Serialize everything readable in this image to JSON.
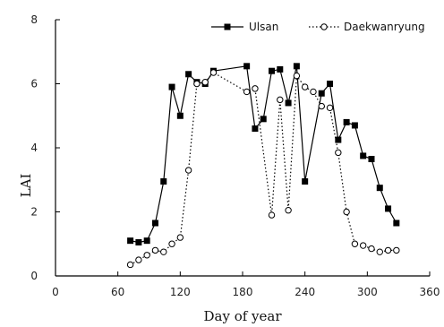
{
  "chart_data": {
    "type": "line",
    "title": "",
    "xlabel": "Day of year",
    "ylabel": "LAI",
    "xlim": [
      0,
      360
    ],
    "ylim": [
      0,
      8
    ],
    "xticks": [
      0,
      60,
      120,
      180,
      240,
      300,
      360
    ],
    "yticks": [
      0,
      2,
      4,
      6,
      8
    ],
    "grid": false,
    "legend_position": "top-right",
    "series": [
      {
        "name": "Ulsan",
        "style": "solid",
        "marker": "filled-square",
        "color": "#000000",
        "x": [
          72,
          80,
          88,
          96,
          104,
          112,
          120,
          128,
          136,
          144,
          152,
          184,
          192,
          200,
          208,
          216,
          224,
          232,
          240,
          256,
          264,
          272,
          280,
          288,
          296,
          304,
          312,
          320,
          328
        ],
        "y": [
          1.1,
          1.05,
          1.1,
          1.65,
          2.95,
          5.9,
          5.0,
          6.3,
          6.05,
          6.0,
          6.4,
          6.55,
          4.6,
          4.9,
          6.4,
          6.45,
          5.4,
          6.55,
          2.95,
          5.7,
          6.0,
          4.25,
          4.8,
          4.7,
          3.75,
          3.65,
          2.75,
          2.1,
          1.65
        ]
      },
      {
        "name": "Daekwanryung",
        "style": "dotted",
        "marker": "open-circle",
        "color": "#000000",
        "x": [
          72,
          80,
          88,
          96,
          104,
          112,
          120,
          128,
          136,
          144,
          152,
          184,
          192,
          208,
          216,
          224,
          232,
          240,
          248,
          256,
          264,
          272,
          280,
          288,
          296,
          304,
          312,
          320,
          328
        ],
        "y": [
          0.35,
          0.5,
          0.65,
          0.8,
          0.75,
          1.0,
          1.2,
          3.3,
          6.0,
          6.05,
          6.35,
          5.75,
          5.85,
          1.9,
          5.5,
          2.05,
          6.25,
          5.9,
          5.75,
          5.3,
          5.25,
          3.85,
          2.0,
          1.0,
          0.95,
          0.85,
          0.75,
          0.8,
          0.8
        ]
      }
    ]
  }
}
